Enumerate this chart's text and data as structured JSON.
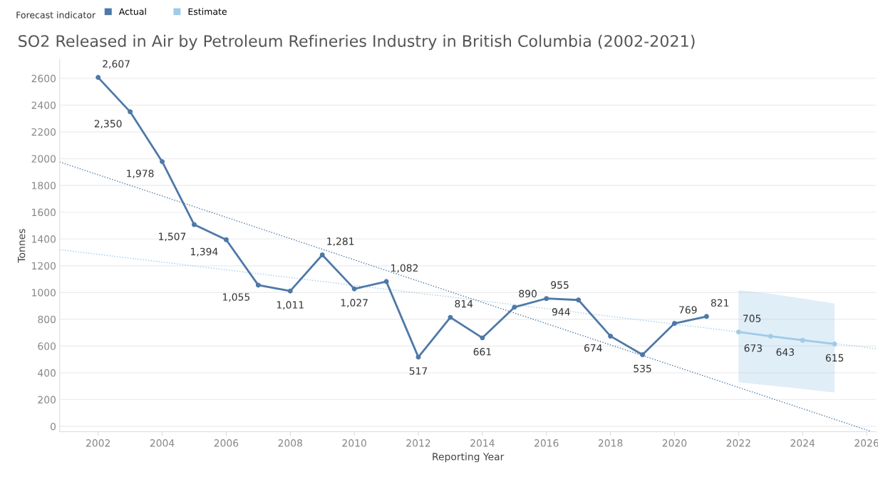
{
  "chart_data": {
    "type": "line",
    "title": "SO2 Released in Air by Petroleum Refineries Industry in British Columbia (2002-2021)",
    "xlabel": "Reporting Year",
    "ylabel": "Tonnes",
    "legend_title": "Forecast indicator",
    "legend": "top",
    "xlim": [
      2000.8,
      2026.3
    ],
    "xticks": [
      2002,
      2004,
      2006,
      2008,
      2010,
      2012,
      2014,
      2016,
      2018,
      2020,
      2022,
      2024,
      2026
    ],
    "ylim": [
      -40,
      2740
    ],
    "yticks": [
      0,
      200,
      400,
      600,
      800,
      1000,
      1200,
      1400,
      1600,
      1800,
      2000,
      2200,
      2400,
      2600
    ],
    "grid": "y",
    "marker": "circle",
    "line_style": "solid",
    "series": [
      {
        "name": "Actual",
        "color": "#4e79a7",
        "x": [
          2002,
          2003,
          2004,
          2005,
          2006,
          2007,
          2008,
          2009,
          2010,
          2011,
          2012,
          2013,
          2014,
          2015,
          2016,
          2017,
          2018,
          2019,
          2020,
          2021
        ],
        "values": [
          2607,
          2350,
          1978,
          1507,
          1394,
          1055,
          1011,
          1281,
          1027,
          1082,
          517,
          814,
          661,
          890,
          955,
          944,
          674,
          535,
          769,
          821
        ],
        "value_labels": [
          "2,607",
          "2,350",
          "1,978",
          "1,507",
          "1,394",
          "1,055",
          "1,011",
          "1,281",
          "1,027",
          "1,082",
          "517",
          "814",
          "661",
          "890",
          "955",
          "944",
          "674",
          "535",
          "769",
          "821"
        ]
      },
      {
        "name": "Estimate",
        "color": "#a0cbe8",
        "x": [
          2022,
          2023,
          2024,
          2025
        ],
        "values": [
          705,
          673,
          643,
          615
        ],
        "value_labels": [
          "705",
          "673",
          "643",
          "615"
        ],
        "lower": [
          328,
          305,
          280,
          253
        ],
        "upper": [
          1017,
          990,
          955,
          917
        ]
      },
      {
        "type": "line",
        "color": "#4e79a7",
        "line_style": "dotted",
        "marker": "none",
        "x": [
          2000.8,
          2026.1
        ],
        "values": [
          1975,
          -35
        ]
      },
      {
        "type": "line",
        "color": "#a0cbe8",
        "line_style": "dotted",
        "marker": "none",
        "x": [
          2000.8,
          2026.3
        ],
        "values": [
          1320,
          581
        ]
      }
    ]
  }
}
